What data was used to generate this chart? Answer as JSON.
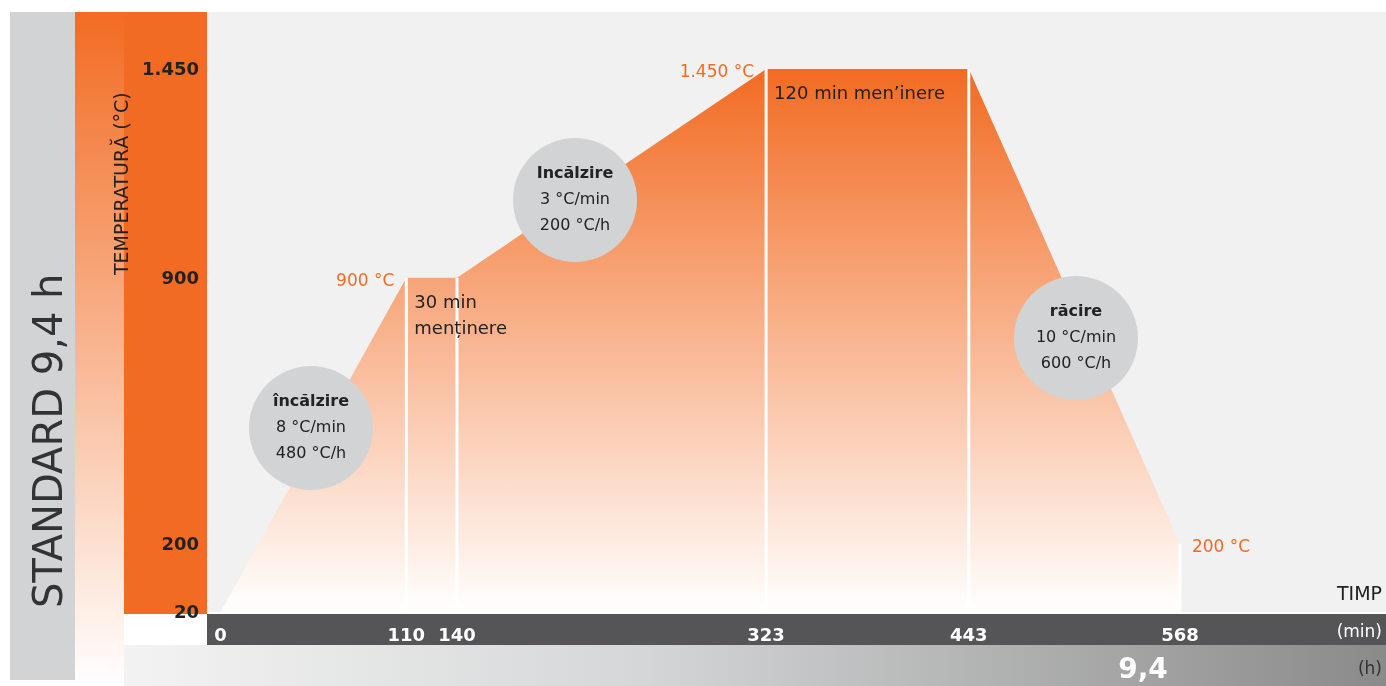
{
  "chart_data": {
    "type": "area",
    "title": "STANDARD 9,4 h",
    "xlabel": "TIMP",
    "ylabel": "TEMPERATURĂ (°C)",
    "x": [
      0,
      110,
      140,
      323,
      443,
      568
    ],
    "series": [
      {
        "color": "#f26b22",
        "values": [
          20,
          900,
          900,
          1450,
          1450,
          200
        ]
      }
    ],
    "xlim": [
      -8,
      690
    ],
    "xticks": [
      0,
      110,
      140,
      323,
      443,
      568
    ],
    "ylim": [
      20,
      1600
    ],
    "yticks": [
      20,
      200,
      900,
      {
        "value": 1450,
        "label": "1.450"
      }
    ],
    "ref_lines": [
      {
        "axis": "x",
        "value": 110,
        "color": "#ffffff"
      },
      {
        "axis": "x",
        "value": 140,
        "color": "#ffffff"
      },
      {
        "axis": "x",
        "value": 323,
        "color": "#ffffff"
      },
      {
        "axis": "x",
        "value": 443,
        "color": "#ffffff"
      },
      {
        "axis": "x",
        "value": 568,
        "color": "#ffffff"
      }
    ],
    "annotations": [
      {
        "text": "900 °C",
        "x": 110,
        "y": 900
      },
      {
        "text": "30 min\nmenținere",
        "x": 110,
        "y": 900
      },
      {
        "text": "1.450 °C",
        "x": 323,
        "y": 1450
      },
      {
        "text": "120 min men’inere",
        "x": 323,
        "y": 1450
      },
      {
        "text": "200 °C",
        "x": 568,
        "y": 200
      },
      "încălzire\n8 °C/min\n480 °C/h",
      "Incălzire\n3 °C/min\n200 °C/h",
      "răcire\n10 °C/min\n600 °C/h",
      "9,4",
      "(h)",
      "(min)"
    ]
  }
}
